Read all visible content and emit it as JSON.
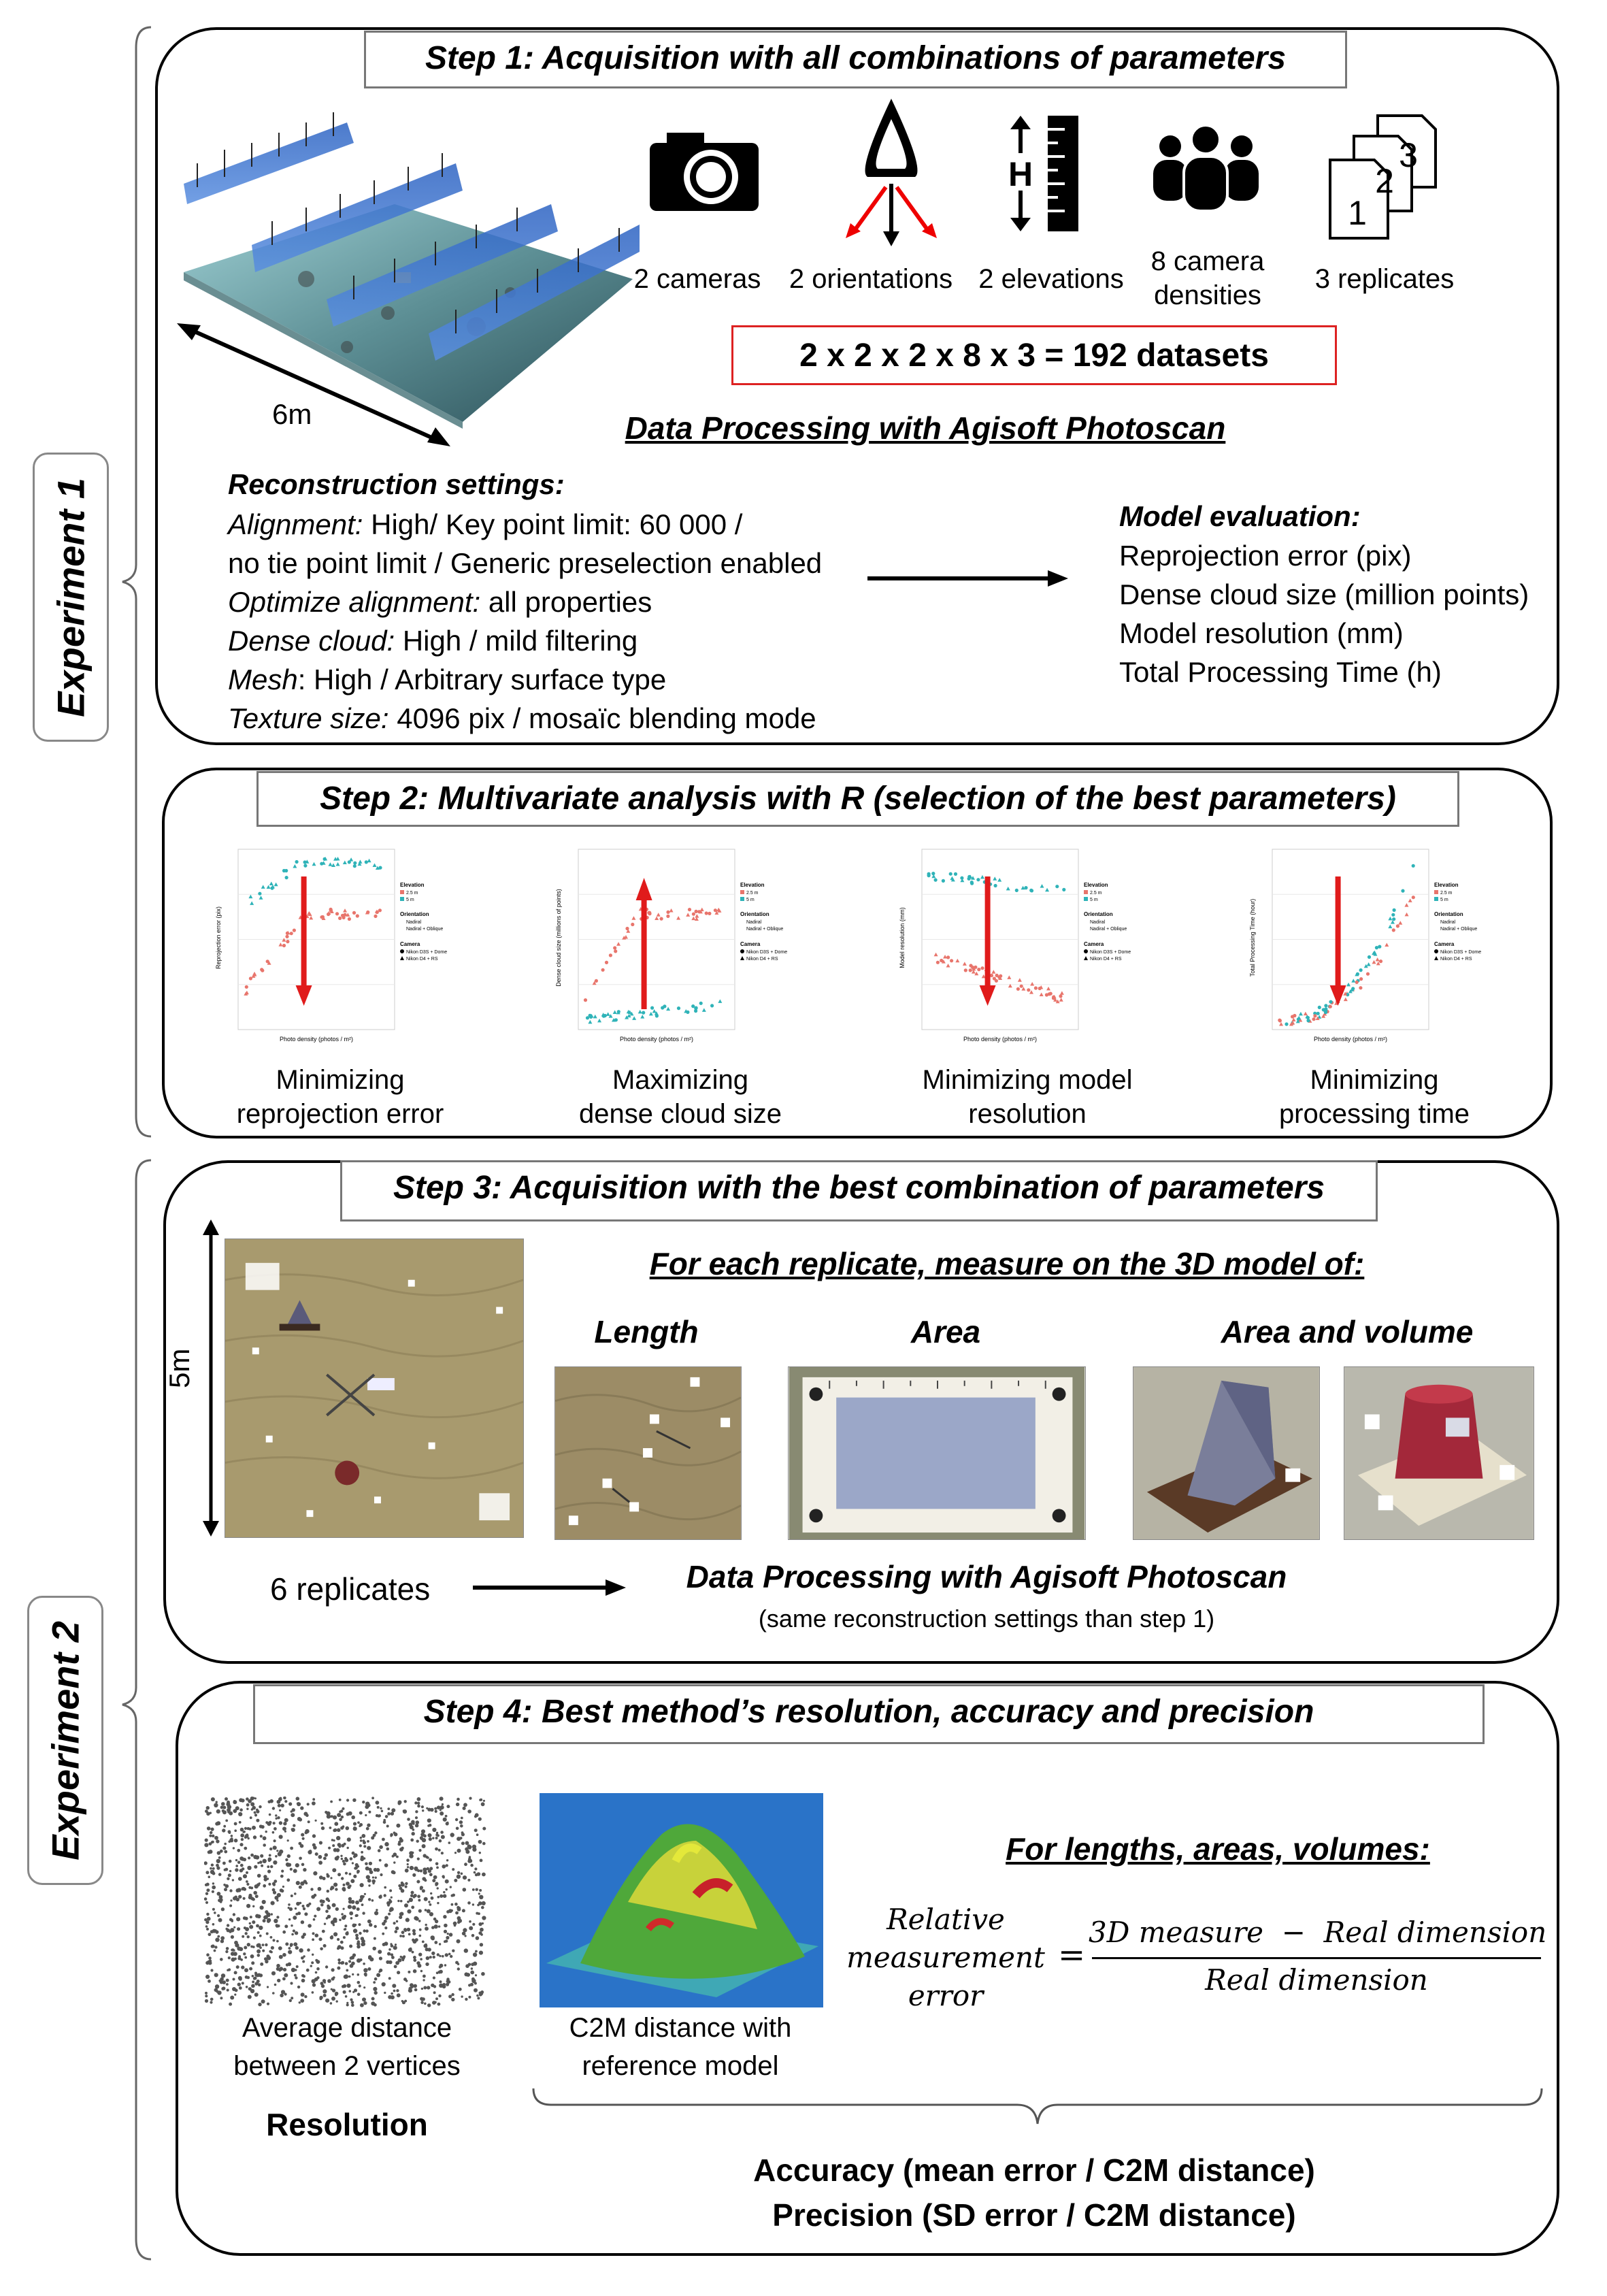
{
  "experiments": {
    "exp1": "Experiment 1",
    "exp2": "Experiment 2"
  },
  "step1": {
    "title": "Step 1: Acquisition with all combinations of parameters",
    "scale_label": "6m",
    "params": [
      {
        "icon": "camera-icon",
        "label": "2 cameras"
      },
      {
        "icon": "orientation-icon",
        "label": "2 orientations"
      },
      {
        "icon": "elevation-icon",
        "label": "2 elevations"
      },
      {
        "icon": "people-icon",
        "label_line1": "8 camera",
        "label_line2": "densities"
      },
      {
        "icon": "replicates-icon",
        "label": "3 replicates"
      }
    ],
    "formula": "2 x 2 x 2 x 8 x 3 = 192 datasets",
    "processing": "Data Processing with Agisoft Photoscan",
    "settings_title": "Reconstruction settings:",
    "settings": [
      {
        "key": "Alignment:",
        "val": " High/ Key point limit: 60 000 /"
      },
      {
        "key": "",
        "val": "no tie point limit / Generic preselection enabled"
      },
      {
        "key": "Optimize alignment:",
        "val": " all properties"
      },
      {
        "key": "Dense cloud:",
        "val": " High / mild filtering"
      },
      {
        "key": "Mesh",
        "val": ": High / Arbitrary surface type"
      },
      {
        "key": "Texture size:",
        "val": " 4096 pix / mosaïc blending mode"
      }
    ],
    "eval_title": "Model evaluation:",
    "eval_items": [
      "Reprojection error (pix)",
      "Dense cloud size (million points)",
      "Model resolution (mm)",
      "Total Processing Time (h)"
    ]
  },
  "step2": {
    "title": "Step 2: Multivariate analysis with R (selection of the best parameters)",
    "charts": [
      {
        "caption1": "Minimizing",
        "caption2": "reprojection error",
        "ylabel": "Reprojection error (pix)",
        "xlabel": "Photo density (photos / m²)",
        "arrow": "down"
      },
      {
        "caption1": "Maximizing",
        "caption2": "dense cloud size",
        "ylabel": "Dense cloud size (millions of points)",
        "xlabel": "Photo density (photos / m²)",
        "arrow": "up"
      },
      {
        "caption1": "Minimizing  model",
        "caption2": "resolution",
        "ylabel": "Model resolution (mm)",
        "xlabel": "Photo density (photos / m²)",
        "arrow": "down"
      },
      {
        "caption1": "Minimizing",
        "caption2": "processing time",
        "ylabel": "Total Processing Time (hour)",
        "xlabel": "Photo density (photos / m²)",
        "arrow": "down"
      }
    ],
    "legend": {
      "elevation_title": "Elevation",
      "elevation_a": "2.5 m",
      "elevation_b": "5 m",
      "orientation_title": "Orientation",
      "orientation_a": "Nadiral",
      "orientation_b": "Nadiral + Oblique",
      "camera_title": "Camera",
      "camera_a": "Nikon D3S + Dome",
      "camera_b": "Nikon D4 + RS"
    },
    "colors": {
      "elev_a": "#e8756c",
      "elev_b": "#2fb3b8",
      "arrow": "#e01b1b"
    }
  },
  "step3": {
    "title": "Step 3: Acquisition with the best combination of parameters",
    "scale_label": "5m",
    "measure_title": "For each replicate, measure on the 3D model of:",
    "length": "Length",
    "area": "Area",
    "area_volume": "Area and volume",
    "replicates": "6 replicates",
    "processing": "Data Processing with Agisoft Photoscan",
    "note": "(same reconstruction settings than step 1)"
  },
  "step4": {
    "title": "Step 4: Best method’s resolution, accuracy and precision",
    "res_caption1": "Average distance",
    "res_caption2": "between 2 vertices",
    "resolution": "Resolution",
    "c2m_caption1": "C2M distance with",
    "c2m_caption2": "reference model",
    "for_title": "For lengths, areas, volumes:",
    "eq_lhs1": "Relative",
    "eq_lhs2": "measurement",
    "eq_lhs3": "error",
    "eq_equals": "=",
    "eq_num": "3D measure  −  Real dimension",
    "eq_den": "Real dimension",
    "accuracy": "Accuracy (mean error / C2M distance)",
    "precision": "Precision (SD error / C2M distance)"
  }
}
